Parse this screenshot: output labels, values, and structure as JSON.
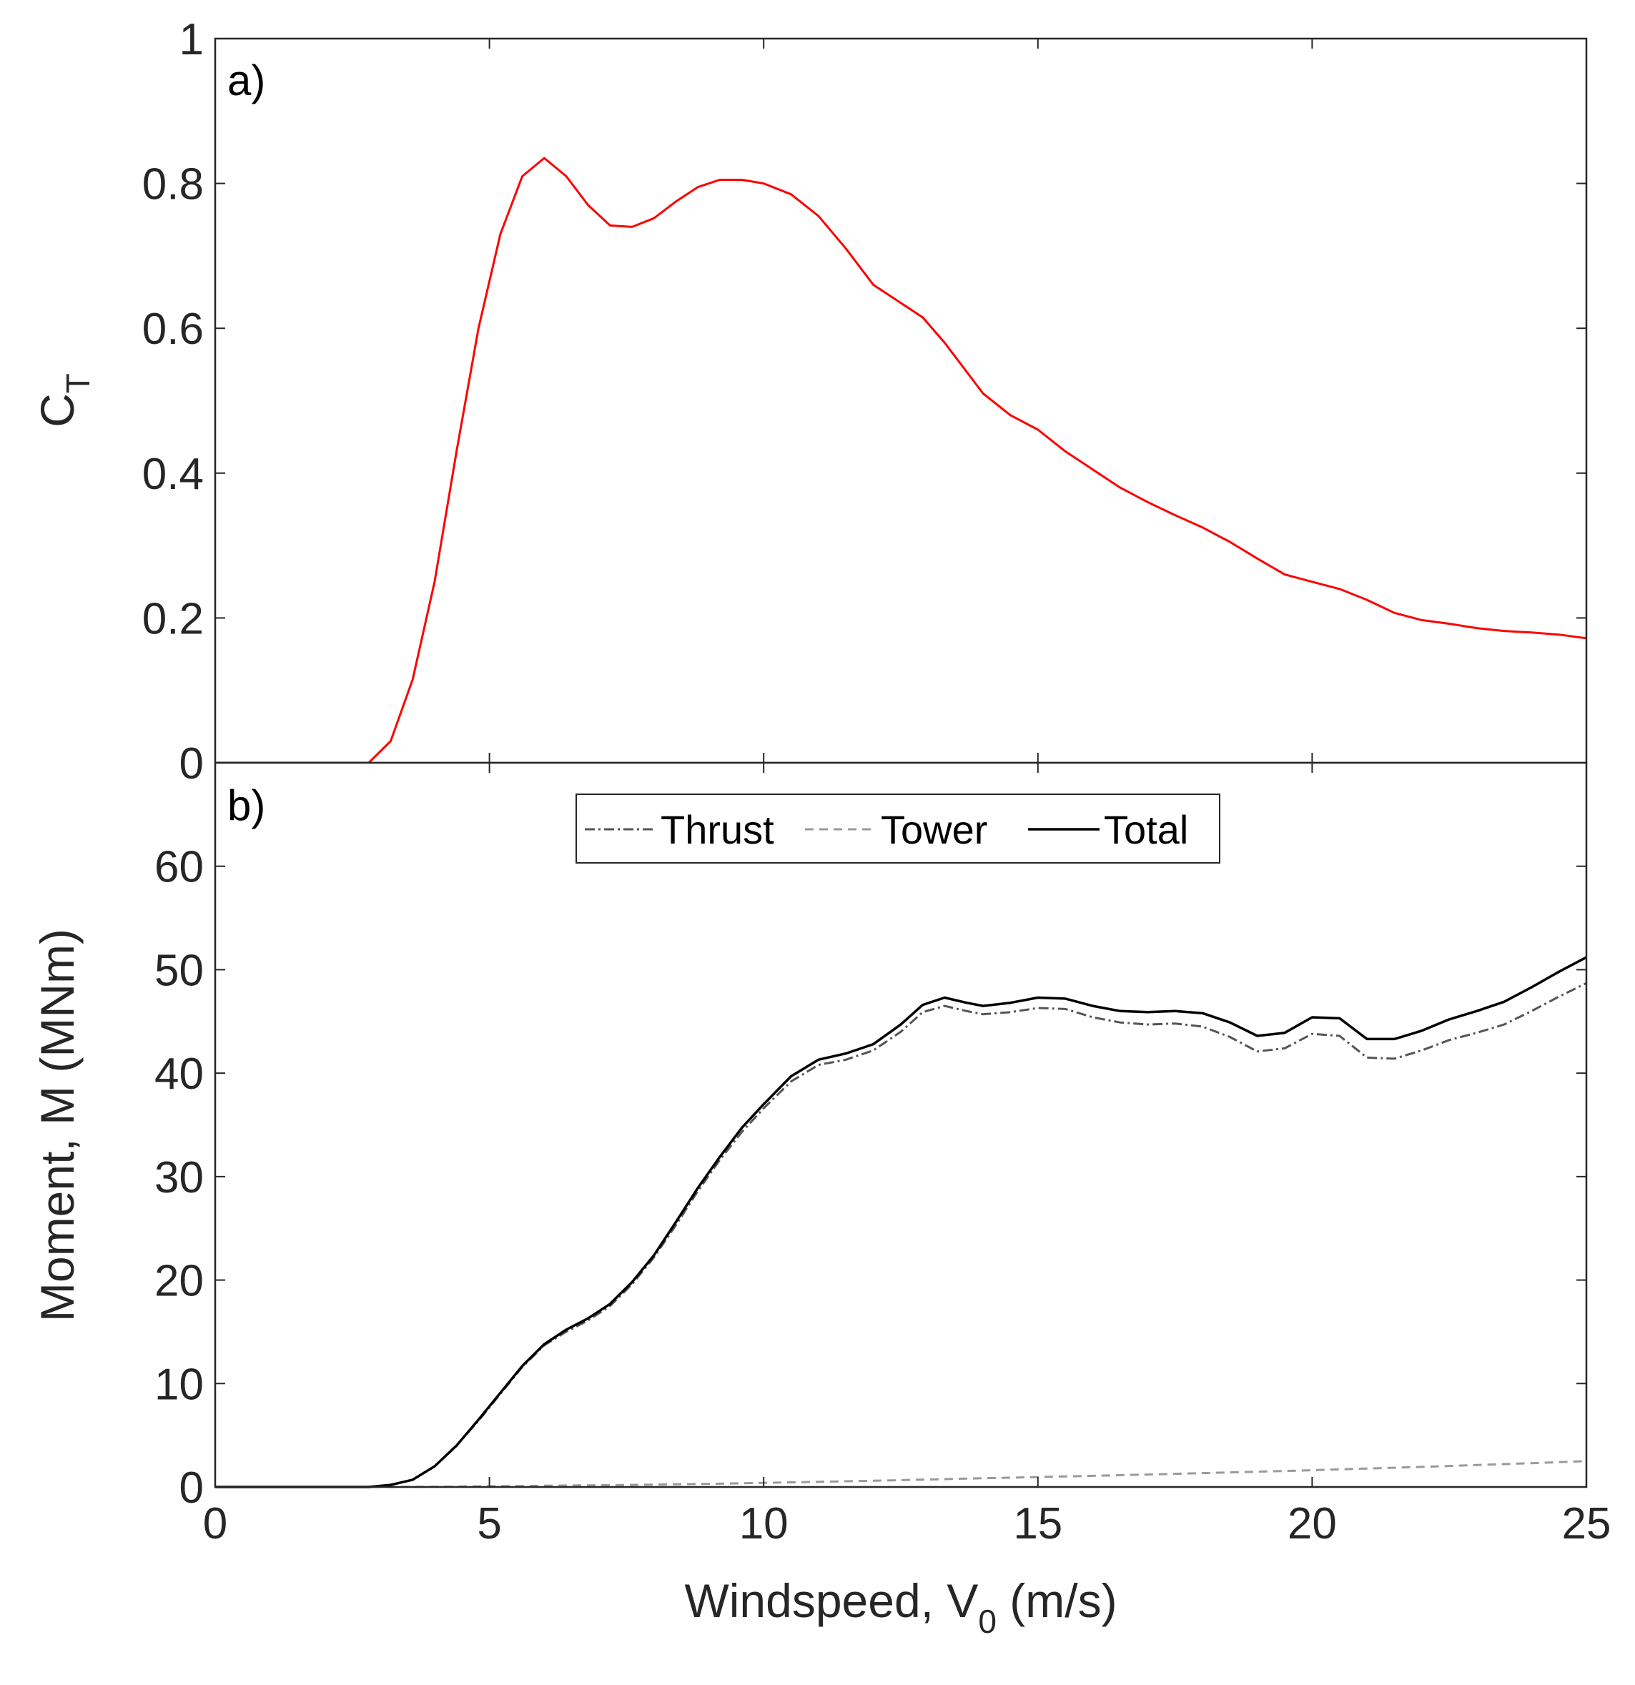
{
  "figure": {
    "xlabel_main": "Windspeed, V",
    "xlabel_sub": "0",
    "xlabel_unit": " (m/s)",
    "x_ticks": [
      "0",
      "5",
      "10",
      "15",
      "20",
      "25"
    ]
  },
  "chart_data": [
    {
      "type": "line",
      "panel_label": "a)",
      "ylabel_main": "C",
      "ylabel_sub": "T",
      "xlim": [
        0,
        25
      ],
      "ylim": [
        0,
        1
      ],
      "y_ticks": [
        "0",
        "0.2",
        "0.4",
        "0.6",
        "0.8",
        "1"
      ],
      "series": [
        {
          "name": "C_T",
          "color": "#ff0000",
          "x": [
            0,
            1,
            2,
            2.8,
            3.2,
            3.6,
            4.0,
            4.4,
            4.8,
            5.2,
            5.6,
            6.0,
            6.4,
            6.8,
            7.2,
            7.6,
            8.0,
            8.4,
            8.8,
            9.2,
            9.6,
            10.0,
            10.5,
            11.0,
            11.5,
            12.0,
            12.5,
            12.9,
            13.3,
            13.7,
            14.0,
            14.5,
            15.0,
            15.5,
            16.0,
            16.5,
            17.0,
            17.5,
            18.0,
            18.5,
            19.0,
            19.5,
            20.0,
            20.5,
            21.0,
            21.5,
            22.0,
            22.5,
            23.0,
            23.5,
            24.0,
            24.5,
            25.0
          ],
          "y": [
            0,
            0,
            0,
            0,
            0.03,
            0.115,
            0.25,
            0.43,
            0.6,
            0.73,
            0.81,
            0.835,
            0.81,
            0.77,
            0.742,
            0.74,
            0.752,
            0.775,
            0.795,
            0.805,
            0.805,
            0.8,
            0.785,
            0.755,
            0.71,
            0.66,
            0.635,
            0.615,
            0.58,
            0.54,
            0.51,
            0.48,
            0.46,
            0.43,
            0.405,
            0.38,
            0.36,
            0.342,
            0.325,
            0.305,
            0.282,
            0.26,
            0.25,
            0.24,
            0.225,
            0.207,
            0.197,
            0.192,
            0.186,
            0.182,
            0.18,
            0.177,
            0.172
          ]
        }
      ]
    },
    {
      "type": "line",
      "panel_label": "b)",
      "ylabel": "Moment, M (MNm)",
      "xlim": [
        0,
        25
      ],
      "ylim": [
        0,
        70
      ],
      "y_ticks": [
        "0",
        "10",
        "20",
        "30",
        "40",
        "50",
        "60"
      ],
      "legend": {
        "placement": "top-center",
        "entries": [
          "Thrust",
          "Tower",
          "Total"
        ]
      },
      "series": [
        {
          "name": "Thrust",
          "color": "#555555",
          "style": "dash-dot",
          "x": [
            0,
            1,
            2,
            2.8,
            3.2,
            3.6,
            4.0,
            4.4,
            4.8,
            5.2,
            5.6,
            6.0,
            6.4,
            6.8,
            7.2,
            7.6,
            8.0,
            8.4,
            8.8,
            9.2,
            9.6,
            10.0,
            10.5,
            11.0,
            11.5,
            12.0,
            12.5,
            12.9,
            13.3,
            13.7,
            14.0,
            14.5,
            15.0,
            15.5,
            16.0,
            16.5,
            17.0,
            17.5,
            18.0,
            18.5,
            19.0,
            19.5,
            20.0,
            20.5,
            21.0,
            21.5,
            22.0,
            22.5,
            23.0,
            23.5,
            24.0,
            24.5,
            25.0
          ],
          "y": [
            0,
            0,
            0,
            0,
            0.2,
            0.7,
            2.0,
            4.0,
            6.4,
            9.0,
            11.6,
            13.7,
            15.0,
            16.1,
            17.5,
            19.6,
            22.2,
            25.3,
            28.6,
            31.6,
            34.3,
            36.6,
            39.2,
            40.8,
            41.3,
            42.2,
            44.0,
            45.9,
            46.5,
            46.0,
            45.7,
            45.9,
            46.3,
            46.2,
            45.4,
            44.9,
            44.7,
            44.8,
            44.5,
            43.5,
            42.1,
            42.4,
            43.8,
            43.6,
            41.5,
            41.4,
            42.2,
            43.2,
            43.9,
            44.7,
            46.0,
            47.4,
            48.7
          ]
        },
        {
          "name": "Tower",
          "color": "#9a9a9a",
          "style": "dash",
          "x": [
            0,
            1,
            2,
            2.8,
            3.2,
            3.6,
            4.0,
            4.4,
            4.8,
            5.2,
            5.6,
            6.0,
            6.4,
            6.8,
            7.2,
            7.6,
            8.0,
            8.4,
            8.8,
            9.2,
            9.6,
            10.0,
            10.5,
            11.0,
            11.5,
            12.0,
            12.5,
            12.9,
            13.3,
            13.7,
            14.0,
            14.5,
            15.0,
            15.5,
            16.0,
            16.5,
            17.0,
            17.5,
            18.0,
            18.5,
            19.0,
            19.5,
            20.0,
            20.5,
            21.0,
            21.5,
            22.0,
            22.5,
            23.0,
            23.5,
            24.0,
            24.5,
            25.0
          ],
          "y": [
            0,
            0,
            0,
            0,
            0,
            0.01,
            0.02,
            0.04,
            0.06,
            0.08,
            0.1,
            0.12,
            0.14,
            0.16,
            0.18,
            0.2,
            0.23,
            0.26,
            0.29,
            0.32,
            0.36,
            0.4,
            0.45,
            0.5,
            0.55,
            0.6,
            0.66,
            0.71,
            0.76,
            0.81,
            0.85,
            0.9,
            0.96,
            1.02,
            1.08,
            1.14,
            1.2,
            1.27,
            1.34,
            1.41,
            1.48,
            1.55,
            1.62,
            1.7,
            1.78,
            1.86,
            1.94,
            2.03,
            2.12,
            2.21,
            2.3,
            2.4,
            2.5
          ]
        },
        {
          "name": "Total",
          "color": "#000000",
          "style": "solid",
          "x": [
            0,
            1,
            2,
            2.8,
            3.2,
            3.6,
            4.0,
            4.4,
            4.8,
            5.2,
            5.6,
            6.0,
            6.4,
            6.8,
            7.2,
            7.6,
            8.0,
            8.4,
            8.8,
            9.2,
            9.6,
            10.0,
            10.5,
            11.0,
            11.5,
            12.0,
            12.5,
            12.9,
            13.3,
            13.7,
            14.0,
            14.5,
            15.0,
            15.5,
            16.0,
            16.5,
            17.0,
            17.5,
            18.0,
            18.5,
            19.0,
            19.5,
            20.0,
            20.5,
            21.0,
            21.5,
            22.0,
            22.5,
            23.0,
            23.5,
            24.0,
            24.5,
            25.0
          ],
          "y": [
            0,
            0,
            0,
            0,
            0.2,
            0.7,
            2.0,
            4.0,
            6.5,
            9.1,
            11.7,
            13.8,
            15.2,
            16.3,
            17.7,
            19.8,
            22.4,
            25.6,
            28.9,
            31.9,
            34.7,
            37.0,
            39.7,
            41.3,
            41.9,
            42.8,
            44.7,
            46.6,
            47.3,
            46.8,
            46.5,
            46.8,
            47.3,
            47.2,
            46.5,
            46.0,
            45.9,
            46.0,
            45.8,
            44.9,
            43.6,
            43.9,
            45.4,
            45.3,
            43.3,
            43.3,
            44.1,
            45.2,
            46.0,
            46.9,
            48.3,
            49.8,
            51.2
          ]
        }
      ]
    }
  ]
}
